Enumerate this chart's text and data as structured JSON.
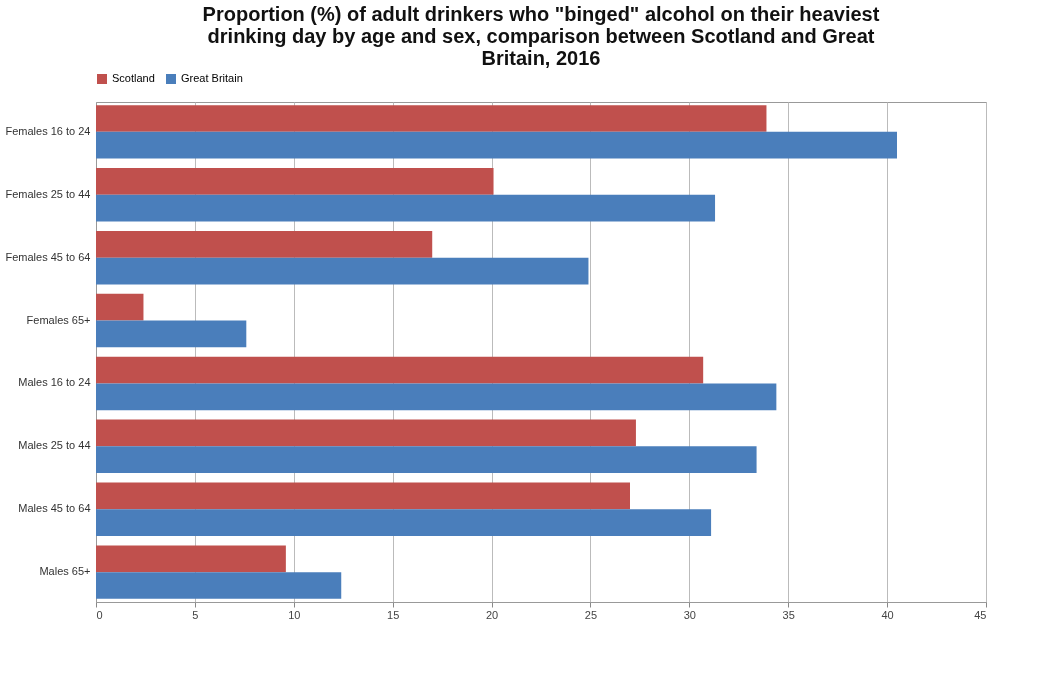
{
  "chart_data": {
    "type": "bar",
    "orientation": "horizontal",
    "title": [
      "Proportion (%) of adult drinkers who \"binged\" alcohol on their heaviest",
      "drinking day by age and sex,  comparison between Scotland and Great",
      "Britain, 2016"
    ],
    "categories": [
      "Females 16 to 24",
      "Females 25 to 44",
      "Females 45 to 64",
      "Females 65+",
      "Males 16 to 24",
      "Males 25 to 44",
      "Males 45 to 64",
      "Males 65+"
    ],
    "series": [
      {
        "name": "Scotland",
        "color": "#c0504d",
        "values": [
          33.9,
          20.1,
          17.0,
          2.4,
          30.7,
          27.3,
          27.0,
          9.6
        ]
      },
      {
        "name": "Great Britain",
        "color": "#4a7ebb",
        "values": [
          40.5,
          31.3,
          24.9,
          7.6,
          34.4,
          33.4,
          31.1,
          12.4
        ]
      }
    ],
    "xlim": [
      0,
      45
    ],
    "xticks": [
      0,
      5,
      10,
      15,
      20,
      25,
      30,
      35,
      40,
      45
    ],
    "grid": "x",
    "legend": "top"
  }
}
